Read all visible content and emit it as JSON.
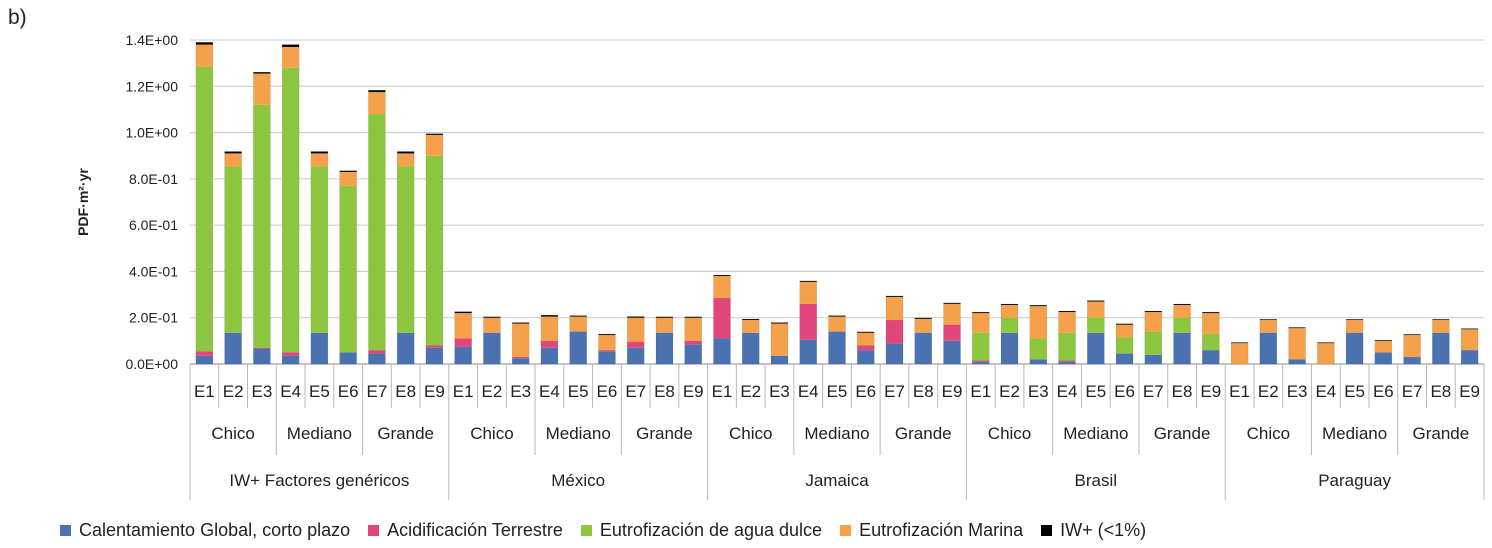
{
  "panel_label": "b)",
  "chart_data": {
    "type": "bar",
    "stacked": true,
    "ylabel": "PDF·m²·yr",
    "ylim": [
      0,
      1.4
    ],
    "yticks": [
      0,
      0.2,
      0.4,
      0.6,
      0.8,
      1.0,
      1.2,
      1.4
    ],
    "ytick_labels": [
      "0.0E+00",
      "2.0E-01",
      "4.0E-01",
      "6.0E-01",
      "8.0E-01",
      "1.0E+00",
      "1.2E+00",
      "1.4E+00"
    ],
    "grid": true,
    "legend_position": "bottom",
    "categories": [
      "E1",
      "E2",
      "E3",
      "E4",
      "E5",
      "E6",
      "E7",
      "E8",
      "E9",
      "E1",
      "E2",
      "E3",
      "E4",
      "E5",
      "E6",
      "E7",
      "E8",
      "E9",
      "E1",
      "E2",
      "E3",
      "E4",
      "E5",
      "E6",
      "E7",
      "E8",
      "E9",
      "E1",
      "E2",
      "E3",
      "E4",
      "E5",
      "E6",
      "E7",
      "E8",
      "E9",
      "E1",
      "E2",
      "E3",
      "E4",
      "E5",
      "E6",
      "E7",
      "E8",
      "E9"
    ],
    "size_groups": [
      "Chico",
      "Mediano",
      "Grande"
    ],
    "regions": [
      "IW+ Factores genéricos",
      "México",
      "Jamaica",
      "Brasil",
      "Paraguay"
    ],
    "series": [
      {
        "name": "Calentamiento Global, corto plazo",
        "color": "#4a72b0",
        "values": [
          0.035,
          0.135,
          0.065,
          0.035,
          0.135,
          0.05,
          0.045,
          0.135,
          0.07,
          0.075,
          0.135,
          0.025,
          0.07,
          0.14,
          0.055,
          0.07,
          0.135,
          0.085,
          0.11,
          0.135,
          0.035,
          0.105,
          0.14,
          0.06,
          0.09,
          0.135,
          0.1,
          0.01,
          0.135,
          0.02,
          0.01,
          0.135,
          0.045,
          0.04,
          0.135,
          0.06,
          0.0,
          0.135,
          0.02,
          0.0,
          0.135,
          0.05,
          0.03,
          0.135,
          0.06
        ]
      },
      {
        "name": "Acidificación Terrestre",
        "color": "#e0457b",
        "values": [
          0.02,
          0.0,
          0.005,
          0.015,
          0.0,
          0.0,
          0.015,
          0.0,
          0.01,
          0.035,
          0.0,
          0.005,
          0.03,
          0.0,
          0.005,
          0.025,
          0.0,
          0.015,
          0.175,
          0.0,
          0.0,
          0.155,
          0.0,
          0.02,
          0.1,
          0.0,
          0.07,
          0.005,
          0.0,
          0.0,
          0.005,
          0.0,
          0.0,
          0.0,
          0.0,
          0.0,
          0.0,
          0.0,
          0.0,
          0.0,
          0.0,
          0.0,
          0.0,
          0.0,
          0.0
        ]
      },
      {
        "name": "Eutrofización de agua dulce",
        "color": "#8cc63f",
        "values": [
          1.23,
          0.72,
          1.05,
          1.23,
          0.72,
          0.72,
          1.02,
          0.72,
          0.82,
          0.0,
          0.0,
          0.0,
          0.0,
          0.0,
          0.0,
          0.0,
          0.0,
          0.0,
          0.0,
          0.0,
          0.0,
          0.0,
          0.0,
          0.0,
          0.0,
          0.0,
          0.0,
          0.12,
          0.065,
          0.09,
          0.12,
          0.065,
          0.07,
          0.1,
          0.065,
          0.07,
          0.0,
          0.0,
          0.0,
          0.0,
          0.0,
          0.0,
          0.0,
          0.0,
          0.0
        ]
      },
      {
        "name": "Eutrofización Marina",
        "color": "#f5a04a",
        "values": [
          0.095,
          0.055,
          0.135,
          0.09,
          0.055,
          0.06,
          0.095,
          0.055,
          0.09,
          0.11,
          0.065,
          0.145,
          0.105,
          0.065,
          0.065,
          0.105,
          0.065,
          0.1,
          0.095,
          0.055,
          0.14,
          0.095,
          0.065,
          0.055,
          0.1,
          0.06,
          0.09,
          0.085,
          0.055,
          0.14,
          0.09,
          0.07,
          0.055,
          0.085,
          0.055,
          0.09,
          0.09,
          0.055,
          0.135,
          0.09,
          0.055,
          0.05,
          0.095,
          0.055,
          0.09
        ]
      },
      {
        "name": "IW+ (<1%)",
        "color": "#000000",
        "values": [
          0.01,
          0.008,
          0.006,
          0.01,
          0.008,
          0.005,
          0.008,
          0.008,
          0.005,
          0.006,
          0.004,
          0.004,
          0.006,
          0.004,
          0.004,
          0.005,
          0.004,
          0.004,
          0.004,
          0.004,
          0.004,
          0.004,
          0.004,
          0.004,
          0.004,
          0.004,
          0.004,
          0.004,
          0.004,
          0.004,
          0.004,
          0.004,
          0.004,
          0.004,
          0.004,
          0.004,
          0.003,
          0.003,
          0.003,
          0.003,
          0.003,
          0.003,
          0.003,
          0.003,
          0.003
        ]
      }
    ]
  }
}
